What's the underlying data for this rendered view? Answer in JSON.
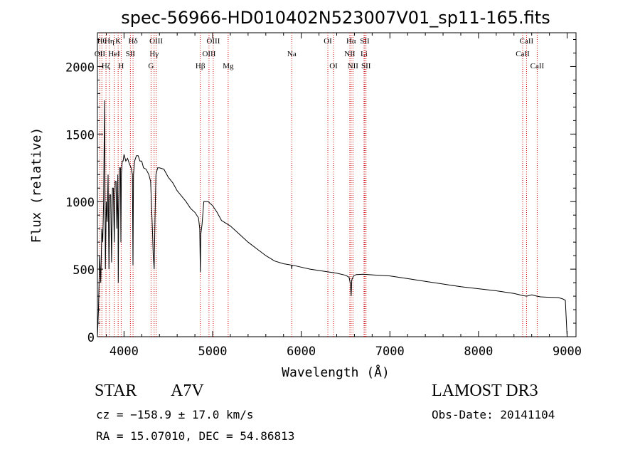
{
  "chart_data": {
    "type": "line",
    "title": "spec-56966-HD010402N523007V01_sp11-165.fits",
    "xlabel": "Wavelength (Å)",
    "ylabel": "Flux (relative)",
    "xlim": [
      3700,
      9100
    ],
    "ylim": [
      0,
      2250
    ],
    "xticks": [
      4000,
      5000,
      6000,
      7000,
      8000,
      9000
    ],
    "yticks": [
      0,
      500,
      1000,
      1500,
      2000
    ],
    "grid": false,
    "series": [
      {
        "name": "flux",
        "x": [
          3700,
          3712,
          3725,
          3738,
          3750,
          3760,
          3770,
          3780,
          3790,
          3800,
          3810,
          3820,
          3830,
          3840,
          3850,
          3860,
          3870,
          3880,
          3890,
          3900,
          3910,
          3920,
          3930,
          3935,
          3940,
          3950,
          3960,
          3965,
          3970,
          3980,
          3990,
          4000,
          4020,
          4040,
          4060,
          4080,
          4095,
          4101,
          4107,
          4120,
          4140,
          4160,
          4180,
          4200,
          4220,
          4250,
          4280,
          4300,
          4320,
          4330,
          4340,
          4350,
          4360,
          4380,
          4400,
          4450,
          4500,
          4550,
          4600,
          4650,
          4700,
          4750,
          4800,
          4840,
          4855,
          4861,
          4867,
          4880,
          4900,
          4950,
          5000,
          5050,
          5100,
          5150,
          5200,
          5300,
          5400,
          5500,
          5600,
          5700,
          5800,
          5890,
          5893,
          5896,
          5900,
          6000,
          6100,
          6200,
          6300,
          6400,
          6500,
          6540,
          6555,
          6563,
          6570,
          6590,
          6620,
          6700,
          6800,
          7000,
          7200,
          7400,
          7600,
          7800,
          8000,
          8200,
          8400,
          8498,
          8542,
          8600,
          8662,
          8700,
          8800,
          8900,
          8950,
          8980,
          9000
        ],
        "values": [
          0,
          200,
          600,
          400,
          800,
          700,
          1000,
          1750,
          500,
          1000,
          850,
          1200,
          500,
          1050,
          1050,
          550,
          1100,
          1100,
          700,
          1150,
          1150,
          800,
          1200,
          400,
          900,
          1250,
          1250,
          700,
          1200,
          1300,
          1300,
          1350,
          1300,
          1320,
          1280,
          1250,
          1200,
          530,
          1200,
          1300,
          1340,
          1340,
          1300,
          1300,
          1250,
          1240,
          1200,
          1150,
          800,
          600,
          500,
          880,
          1200,
          1250,
          1250,
          1240,
          1180,
          1140,
          1080,
          1040,
          1000,
          950,
          920,
          880,
          800,
          480,
          760,
          830,
          1000,
          1000,
          970,
          920,
          860,
          840,
          820,
          760,
          700,
          650,
          600,
          560,
          540,
          530,
          500,
          525,
          530,
          515,
          500,
          490,
          480,
          470,
          455,
          440,
          390,
          300,
          420,
          450,
          460,
          462,
          458,
          450,
          430,
          410,
          390,
          370,
          355,
          340,
          320,
          305,
          300,
          310,
          300,
          295,
          292,
          290,
          280,
          270,
          0
        ]
      }
    ],
    "annotations": {
      "row1": [
        {
          "wavelength": 3750,
          "label": "Hθ"
        },
        {
          "wavelength": 3835,
          "label": "Hη"
        },
        {
          "wavelength": 3934,
          "label": "K"
        },
        {
          "wavelength": 4102,
          "label": "Hδ"
        },
        {
          "wavelength": 4363,
          "label": "OIII"
        },
        {
          "wavelength": 5007,
          "label": "OIII"
        },
        {
          "wavelength": 6300,
          "label": "OI"
        },
        {
          "wavelength": 6563,
          "label": "Hα"
        },
        {
          "wavelength": 6717,
          "label": "SII"
        },
        {
          "wavelength": 8542,
          "label": "CaII"
        }
      ],
      "row2": [
        {
          "wavelength": 3727,
          "label": "OII"
        },
        {
          "wavelength": 3889,
          "label": "HeI"
        },
        {
          "wavelength": 4072,
          "label": "SII"
        },
        {
          "wavelength": 4340,
          "label": "Hγ"
        },
        {
          "wavelength": 4959,
          "label": "OIII"
        },
        {
          "wavelength": 5893,
          "label": "Na"
        },
        {
          "wavelength": 6548,
          "label": "NII"
        },
        {
          "wavelength": 6708,
          "label": "Li"
        },
        {
          "wavelength": 8498,
          "label": "CaII"
        }
      ],
      "row3": [
        {
          "wavelength": 3797,
          "label": "Hζ"
        },
        {
          "wavelength": 3968,
          "label": "H"
        },
        {
          "wavelength": 4305,
          "label": "G"
        },
        {
          "wavelength": 4861,
          "label": "Hβ"
        },
        {
          "wavelength": 5175,
          "label": "Mg"
        },
        {
          "wavelength": 6364,
          "label": "OI"
        },
        {
          "wavelength": 6583,
          "label": "NII"
        },
        {
          "wavelength": 6731,
          "label": "SII"
        },
        {
          "wavelength": 8662,
          "label": "CaII"
        }
      ]
    }
  },
  "info": {
    "object_class": "STAR",
    "subclass": "A7V",
    "survey": "LAMOST DR3",
    "cz": "cz = −158.9 ± 17.0 km/s",
    "obs_date": "Obs-Date: 20141104",
    "coords": "RA =  15.07010, DEC =  54.86813"
  }
}
